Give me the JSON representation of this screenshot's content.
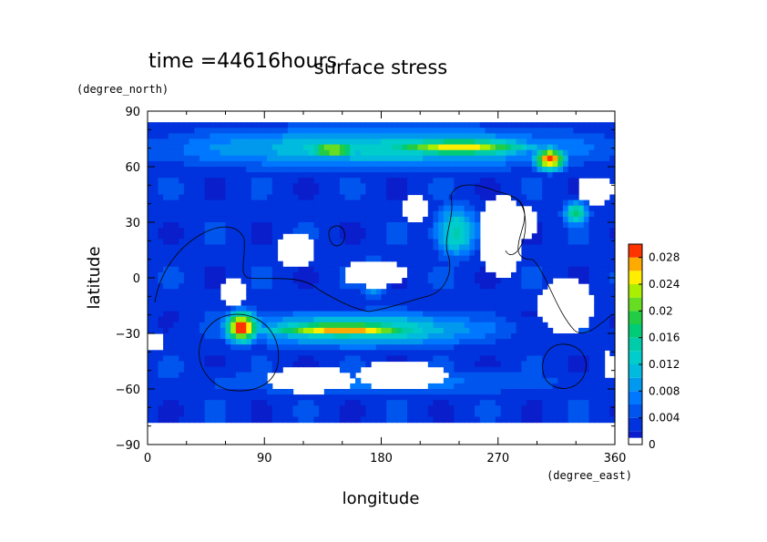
{
  "chart_data": {
    "type": "heatmap",
    "title": "surface stress",
    "subtitle": "time =44616hours",
    "xlabel": "longitude",
    "ylabel": "latitude",
    "x_units": "(degree_east)",
    "y_units": "(degree_north)",
    "xlim": [
      0,
      360
    ],
    "ylim": [
      -90,
      90
    ],
    "x_ticks": [
      0,
      90,
      180,
      270,
      360
    ],
    "y_ticks": [
      -90,
      -60,
      -30,
      0,
      30,
      60,
      90
    ],
    "x_tick_labels": [
      "0",
      "90",
      "180",
      "270",
      "360"
    ],
    "y_tick_labels": [
      "−90",
      "−60",
      "−30",
      "0",
      "30",
      "60",
      "90"
    ],
    "data_lat_range": [
      -78,
      85
    ],
    "colorbar": {
      "min": 0,
      "max": 0.03,
      "step": 0.002,
      "tick_values": [
        0,
        0.004,
        0.008,
        0.012,
        0.016,
        0.02,
        0.024,
        0.028
      ],
      "tick_labels": [
        "0",
        "0.004",
        "0.008",
        "0.012",
        "0.016",
        "0.02",
        "0.024",
        "0.028"
      ],
      "colors": [
        "#ffffff",
        "#0a1ecc",
        "#0033dd",
        "#0055ee",
        "#0077ff",
        "#0099ee",
        "#00bbdd",
        "#00cccc",
        "#00ccaa",
        "#00cc77",
        "#22cc44",
        "#66dd22",
        "#aaee00",
        "#ffee00",
        "#ffaa00",
        "#ff3300"
      ]
    },
    "background_level": 0.003,
    "features": [
      {
        "name": "northern-jet-band",
        "lon": [
          0,
          360
        ],
        "lat": [
          58,
          82
        ],
        "value": 0.012
      },
      {
        "name": "northern-jet-core-a",
        "lon": [
          120,
          165
        ],
        "lat": [
          66,
          72
        ],
        "value": 0.02
      },
      {
        "name": "northern-jet-core-b",
        "lon": [
          180,
          300
        ],
        "lat": [
          66,
          75
        ],
        "value": 0.022
      },
      {
        "name": "northern-peak",
        "lon": [
          298,
          322
        ],
        "lat": [
          58,
          70
        ],
        "value": 0.029
      },
      {
        "name": "southern-jet-band",
        "lon": [
          60,
          270
        ],
        "lat": [
          -38,
          -18
        ],
        "value": 0.014
      },
      {
        "name": "southern-jet-core",
        "lon": [
          90,
          210
        ],
        "lat": [
          -32,
          -24
        ],
        "value": 0.024
      },
      {
        "name": "southern-peak",
        "lon": [
          60,
          85
        ],
        "lat": [
          -35,
          -18
        ],
        "value": 0.029
      },
      {
        "name": "equatorial-patch-a",
        "lon": [
          165,
          185
        ],
        "lat": [
          -10,
          10
        ],
        "value": 0.014
      },
      {
        "name": "equatorial-patch-b",
        "lon": [
          220,
          255
        ],
        "lat": [
          10,
          40
        ],
        "value": 0.014
      },
      {
        "name": "equatorial-patch-c",
        "lon": [
          320,
          340
        ],
        "lat": [
          28,
          42
        ],
        "value": 0.016
      },
      {
        "name": "south-polar-band",
        "lon": [
          0,
          360
        ],
        "lat": [
          -65,
          -48
        ],
        "value": 0.006
      }
    ],
    "zero_regions": [
      {
        "lon": [
          90,
          160
        ],
        "lat": [
          -62,
          -48
        ]
      },
      {
        "lon": [
          160,
          230
        ],
        "lat": [
          -60,
          -45
        ]
      },
      {
        "lon": [
          100,
          130
        ],
        "lat": [
          5,
          25
        ]
      },
      {
        "lon": [
          150,
          200
        ],
        "lat": [
          -5,
          10
        ]
      },
      {
        "lon": [
          195,
          215
        ],
        "lat": [
          30,
          45
        ]
      },
      {
        "lon": [
          255,
          290
        ],
        "lat": [
          0,
          45
        ]
      },
      {
        "lon": [
          270,
          300
        ],
        "lat": [
          20,
          40
        ]
      },
      {
        "lon": [
          300,
          345
        ],
        "lat": [
          -30,
          0
        ]
      },
      {
        "lon": [
          350,
          360
        ],
        "lat": [
          -55,
          -40
        ]
      },
      {
        "lon": [
          0,
          12
        ],
        "lat": [
          -40,
          -30
        ]
      },
      {
        "lon": [
          55,
          75
        ],
        "lat": [
          -15,
          0
        ]
      },
      {
        "lon": [
          330,
          360
        ],
        "lat": [
          40,
          55
        ]
      }
    ]
  }
}
